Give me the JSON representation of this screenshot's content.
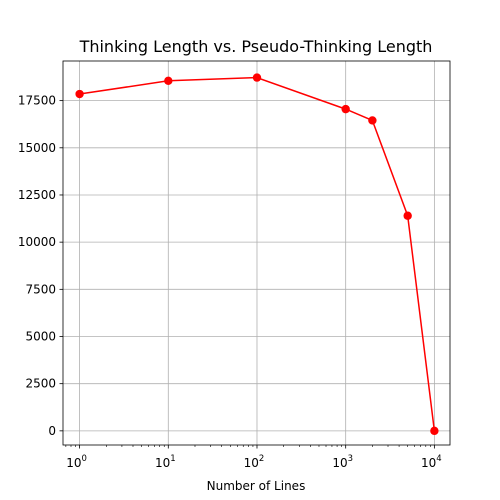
{
  "chart_data": {
    "type": "line",
    "title": "Thinking Length vs. Pseudo-Thinking Length",
    "xlabel": "Number of Lines",
    "ylabel": "",
    "x_scale": "log",
    "xlim": [
      0.65,
      15000
    ],
    "ylim": [
      -750,
      19600
    ],
    "x_ticks": [
      1,
      10,
      100,
      1000,
      10000
    ],
    "x_tick_labels": [
      {
        "base": "10",
        "exp": "0"
      },
      {
        "base": "10",
        "exp": "1"
      },
      {
        "base": "10",
        "exp": "2"
      },
      {
        "base": "10",
        "exp": "3"
      },
      {
        "base": "10",
        "exp": "4"
      }
    ],
    "y_ticks": [
      0,
      2500,
      5000,
      7500,
      10000,
      12500,
      15000,
      17500
    ],
    "y_tick_labels": [
      "0",
      "2500",
      "5000",
      "7500",
      "10000",
      "12500",
      "15000",
      "17500"
    ],
    "grid": true,
    "series": [
      {
        "color": "#ff0000",
        "marker": "circle",
        "x": [
          1,
          10,
          100,
          1000,
          2000,
          5000,
          10000
        ],
        "y": [
          17850,
          18550,
          18720,
          17050,
          16450,
          11400,
          0
        ]
      }
    ]
  }
}
